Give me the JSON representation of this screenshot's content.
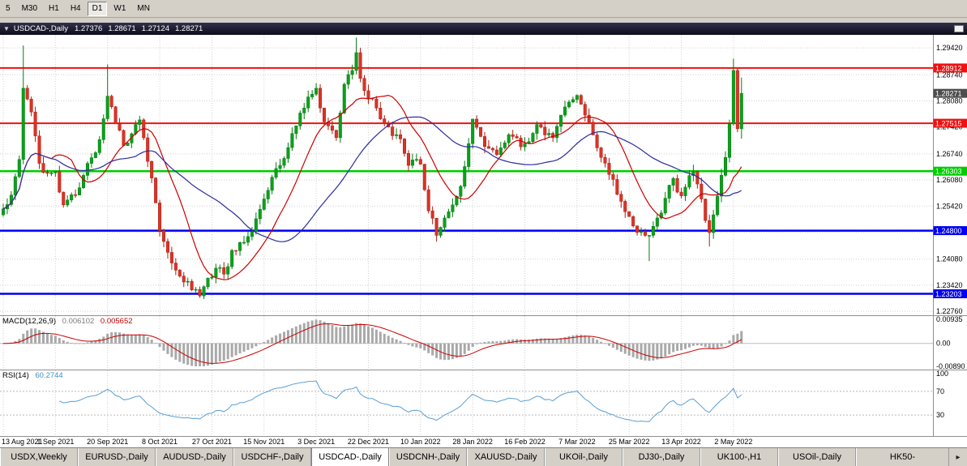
{
  "toolbar": {
    "timeframes": [
      {
        "label": "5",
        "active": false
      },
      {
        "label": "M30",
        "active": false
      },
      {
        "label": "H1",
        "active": false
      },
      {
        "label": "H4",
        "active": false
      },
      {
        "label": "D1",
        "active": true
      },
      {
        "label": "W1",
        "active": false
      },
      {
        "label": "MN",
        "active": false
      }
    ]
  },
  "window": {
    "collapse_icon": "▼",
    "symbol": "USDCAD-,Daily",
    "open": "1.27376",
    "high": "1.28671",
    "low": "1.27124",
    "close": "1.28271"
  },
  "price_axis": {
    "gridlines": [
      {
        "value": 1.2942,
        "label": "1.29420"
      },
      {
        "value": 1.2874,
        "label": "1.28740"
      },
      {
        "value": 1.2808,
        "label": "1.28080"
      },
      {
        "value": 1.2742,
        "label": "1.27420"
      },
      {
        "value": 1.2674,
        "label": "1.26740"
      },
      {
        "value": 1.2608,
        "label": "1.26080"
      },
      {
        "value": 1.2542,
        "label": "1.25420"
      },
      {
        "value": 1.2476,
        "label": ""
      },
      {
        "value": 1.2408,
        "label": "1.24080"
      },
      {
        "value": 1.2342,
        "label": "1.23420"
      },
      {
        "value": 1.2276,
        "label": "1.22760"
      }
    ],
    "badges": [
      {
        "name": "resistance-level-upper",
        "value": 1.28912,
        "label": "1.28912",
        "color": "#ee1111",
        "width": 2,
        "line": true
      },
      {
        "name": "resistance-level-lower",
        "value": 1.27515,
        "label": "1.27515",
        "color": "#ee1111",
        "width": 2,
        "line": true
      },
      {
        "name": "support-level-green",
        "value": 1.26303,
        "label": "1.26303",
        "color": "#00cc00",
        "width": 2.5,
        "line": true
      },
      {
        "name": "support-level-blue-upper",
        "value": 1.248,
        "label": "1.24800",
        "color": "#0000ee",
        "width": 2.5,
        "line": true
      },
      {
        "name": "support-level-blue-lower",
        "value": 1.23203,
        "label": "1.23203",
        "color": "#0000ee",
        "width": 2.5,
        "line": true
      },
      {
        "name": "current-price",
        "value": 1.28271,
        "label": "1.28271",
        "color": "#4d4d4d",
        "line": false
      }
    ]
  },
  "macd": {
    "label": "MACD(12,26,9)",
    "value1": "0.006102",
    "value2": "0.005652",
    "axis": [
      "0.00935",
      "0.00",
      "-0.00890"
    ],
    "range": {
      "max": 0.00935,
      "min": -0.0089
    },
    "fast": 12,
    "slow": 26,
    "signal_period": 9
  },
  "rsi": {
    "label": "RSI(14)",
    "value": "60.2744",
    "period": 14,
    "axis": [
      "100",
      "70",
      "30"
    ],
    "levels": [
      70,
      30
    ]
  },
  "dates": [
    "13 Aug 2021",
    "1 Sep 2021",
    "20 Sep 2021",
    "8 Oct 2021",
    "27 Oct 2021",
    "15 Nov 2021",
    "3 Dec 2021",
    "22 Dec 2021",
    "10 Jan 2022",
    "28 Jan 2022",
    "16 Feb 2022",
    "7 Mar 2022",
    "25 Mar 2022",
    "13 Apr 2022",
    "2 May 2022"
  ],
  "tabs": [
    {
      "label": "USDX,Weekly",
      "active": false
    },
    {
      "label": "EURUSD-,Daily",
      "active": false
    },
    {
      "label": "AUDUSD-,Daily",
      "active": false
    },
    {
      "label": "USDCHF-,Daily",
      "active": false
    },
    {
      "label": "USDCAD-,Daily",
      "active": true
    },
    {
      "label": "USDCNH-,Daily",
      "active": false
    },
    {
      "label": "XAUUSD-,Daily",
      "active": false
    },
    {
      "label": "UKOil-,Daily",
      "active": false
    },
    {
      "label": "DJ30-,Daily",
      "active": false
    },
    {
      "label": "UK100-,H1",
      "active": false
    },
    {
      "label": "USOil-,Daily",
      "active": false
    },
    {
      "label": "HK50-",
      "active": false,
      "truncated": true
    }
  ],
  "tabs_arrow": "▸",
  "chart": {
    "type": "candlestick",
    "symbol": "USDCAD",
    "timeframe": "Daily",
    "bars": 185,
    "bars_per_tick": 13,
    "price_range": {
      "max": 1.2975,
      "min": 1.2266
    },
    "ma_periods": {
      "fast": 13,
      "slow": 34
    },
    "colors": {
      "up": "#0aa11b",
      "up_border": "#067a12",
      "down": "#dc3326",
      "down_border": "#aa1f15",
      "ma_fast": "#cc0000",
      "ma_slow": "#2b2ba0",
      "grid": "#d0d0d0",
      "macd_hist": "#a9a9a9",
      "macd_signal": "#cc0000",
      "rsi_line": "#5a9fd4",
      "axis_text": "#000000"
    },
    "close_keypoints": [
      [
        0,
        1.2535
      ],
      [
        2,
        1.257
      ],
      [
        4,
        1.266
      ],
      [
        5,
        1.284
      ],
      [
        7,
        1.278
      ],
      [
        9,
        1.265
      ],
      [
        11,
        1.2625
      ],
      [
        13,
        1.263
      ],
      [
        15,
        1.2545
      ],
      [
        18,
        1.257
      ],
      [
        21,
        1.265
      ],
      [
        24,
        1.271
      ],
      [
        26,
        1.282
      ],
      [
        28,
        1.275
      ],
      [
        30,
        1.2695
      ],
      [
        32,
        1.2725
      ],
      [
        34,
        1.276
      ],
      [
        36,
        1.2655
      ],
      [
        38,
        1.255
      ],
      [
        39,
        1.248
      ],
      [
        41,
        1.2425
      ],
      [
        43,
        1.238
      ],
      [
        45,
        1.235
      ],
      [
        47,
        1.233
      ],
      [
        49,
        1.2315
      ],
      [
        51,
        1.236
      ],
      [
        53,
        1.2385
      ],
      [
        55,
        1.237
      ],
      [
        57,
        1.243
      ],
      [
        59,
        1.245
      ],
      [
        61,
        1.2465
      ],
      [
        63,
        1.251
      ],
      [
        65,
        1.256
      ],
      [
        67,
        1.2615
      ],
      [
        69,
        1.2645
      ],
      [
        71,
        1.269
      ],
      [
        73,
        1.2745
      ],
      [
        75,
        1.279
      ],
      [
        77,
        1.2825
      ],
      [
        78,
        1.284
      ],
      [
        79,
        1.279
      ],
      [
        81,
        1.2745
      ],
      [
        83,
        1.2715
      ],
      [
        85,
        1.285
      ],
      [
        87,
        1.2885
      ],
      [
        88,
        1.293
      ],
      [
        89,
        1.2865
      ],
      [
        91,
        1.2815
      ],
      [
        93,
        1.279
      ],
      [
        95,
        1.275
      ],
      [
        97,
        1.272
      ],
      [
        99,
        1.2712
      ],
      [
        101,
        1.2645
      ],
      [
        103,
        1.266
      ],
      [
        104,
        1.2648
      ],
      [
        106,
        1.253
      ],
      [
        108,
        1.2468
      ],
      [
        110,
        1.2512
      ],
      [
        112,
        1.2545
      ],
      [
        114,
        1.2592
      ],
      [
        116,
        1.27
      ],
      [
        117,
        1.2762
      ],
      [
        119,
        1.2718
      ],
      [
        121,
        1.2688
      ],
      [
        123,
        1.2672
      ],
      [
        125,
        1.2702
      ],
      [
        127,
        1.2718
      ],
      [
        129,
        1.2692
      ],
      [
        131,
        1.2705
      ],
      [
        133,
        1.2748
      ],
      [
        135,
        1.2722
      ],
      [
        137,
        1.2715
      ],
      [
        139,
        1.2772
      ],
      [
        141,
        1.2805
      ],
      [
        143,
        1.2822
      ],
      [
        145,
        1.2772
      ],
      [
        147,
        1.2722
      ],
      [
        149,
        1.2665
      ],
      [
        151,
        1.2622
      ],
      [
        153,
        1.2572
      ],
      [
        155,
        1.2528
      ],
      [
        157,
        1.2492
      ],
      [
        159,
        1.2478
      ],
      [
        161,
        1.2468
      ],
      [
        163,
        1.2512
      ],
      [
        165,
        1.2562
      ],
      [
        167,
        1.2612
      ],
      [
        169,
        1.2568
      ],
      [
        170,
        1.259
      ],
      [
        172,
        1.263
      ],
      [
        174,
        1.256
      ],
      [
        176,
        1.2475
      ],
      [
        177,
        1.252
      ],
      [
        179,
        1.262
      ],
      [
        180,
        1.2665
      ],
      [
        181,
        1.275
      ],
      [
        182,
        1.2885
      ],
      [
        183,
        1.27376
      ],
      [
        184,
        1.28271
      ]
    ],
    "wick_overrides": {
      "5": {
        "high": 1.2948
      },
      "26": {
        "high": 1.29
      },
      "88": {
        "high": 1.2968
      },
      "108": {
        "low": 1.2452
      },
      "161": {
        "low": 1.2403
      },
      "176": {
        "low": 1.244
      },
      "182": {
        "high": 1.2915
      },
      "183": {
        "high": 1.2891,
        "low": 1.2729
      },
      "184": {
        "high": 1.28671,
        "low": 1.27124
      }
    }
  }
}
